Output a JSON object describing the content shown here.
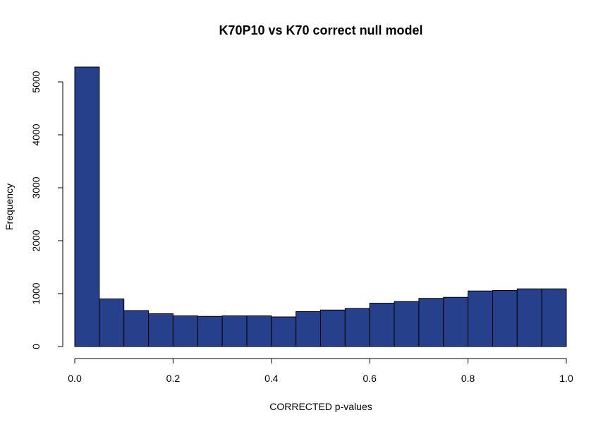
{
  "chart_data": {
    "type": "bar",
    "title": "K70P10 vs K70 correct null model",
    "xlabel": "CORRECTED p-values",
    "ylabel": "Frequency",
    "xlim": [
      0,
      1
    ],
    "ylim": [
      0,
      5300
    ],
    "bin_edges": [
      0.0,
      0.05,
      0.1,
      0.15,
      0.2,
      0.25,
      0.3,
      0.35,
      0.4,
      0.45,
      0.5,
      0.55,
      0.6,
      0.65,
      0.7,
      0.75,
      0.8,
      0.85,
      0.9,
      0.95,
      1.0
    ],
    "values": [
      5280,
      900,
      680,
      620,
      580,
      570,
      580,
      580,
      560,
      660,
      690,
      720,
      820,
      850,
      910,
      930,
      1050,
      1060,
      1090,
      1090
    ],
    "x_ticks": [
      "0.0",
      "0.2",
      "0.4",
      "0.6",
      "0.8",
      "1.0"
    ],
    "y_ticks": [
      "0",
      "1000",
      "2000",
      "3000",
      "4000",
      "5000"
    ],
    "bar_color": "#27408B",
    "grid": false
  }
}
